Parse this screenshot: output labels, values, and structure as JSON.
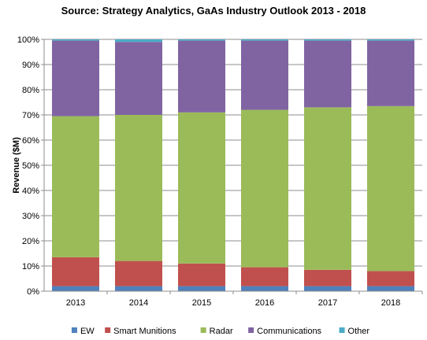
{
  "chart_data": {
    "type": "bar",
    "stacked": true,
    "percent_stacked": true,
    "title": "Source: Strategy Analytics, GaAs Industry Outlook 2013 - 2018",
    "xlabel": "",
    "ylabel": "Revenue ($M)",
    "ylim": [
      0,
      100
    ],
    "yticks": [
      "0%",
      "10%",
      "20%",
      "30%",
      "40%",
      "50%",
      "60%",
      "70%",
      "80%",
      "90%",
      "100%"
    ],
    "categories": [
      "2013",
      "2014",
      "2015",
      "2016",
      "2017",
      "2018"
    ],
    "series": [
      {
        "name": "EW",
        "color": "#4F81BD",
        "values": [
          2,
          2,
          2,
          2,
          2,
          2
        ]
      },
      {
        "name": "Smart Munitions",
        "color": "#C0504D",
        "values": [
          11.5,
          10,
          9,
          7.5,
          6.5,
          6
        ]
      },
      {
        "name": "Radar",
        "color": "#9BBB59",
        "values": [
          56,
          58,
          60,
          62.5,
          64.5,
          65.5
        ]
      },
      {
        "name": "Communications",
        "color": "#8064A2",
        "values": [
          30,
          29,
          28.5,
          27.5,
          26.5,
          26
        ]
      },
      {
        "name": "Other",
        "color": "#4BACC6",
        "values": [
          0.5,
          1,
          0.5,
          0.5,
          0.5,
          0.5
        ]
      }
    ],
    "grid": true,
    "legend": "bottom"
  }
}
